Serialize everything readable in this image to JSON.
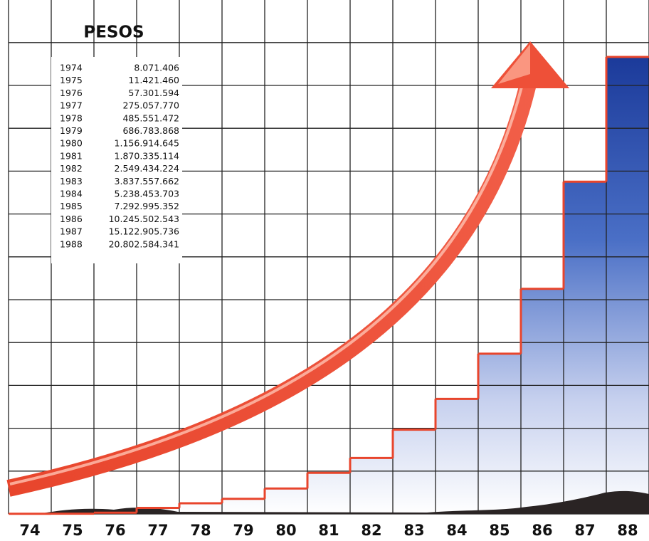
{
  "chart_data": {
    "type": "step",
    "title": "PESOS",
    "categories": [
      "74",
      "75",
      "76",
      "77",
      "78",
      "79",
      "80",
      "81",
      "82",
      "83",
      "84",
      "85",
      "86",
      "87",
      "88"
    ],
    "table_years": [
      "1974",
      "1975",
      "1976",
      "1977",
      "1978",
      "1979",
      "1980",
      "1981",
      "1982",
      "1983",
      "1984",
      "1985",
      "1986",
      "1987",
      "1988"
    ],
    "values": [
      8071406,
      11421460,
      57301594,
      275057770,
      485551472,
      686783868,
      1156914645,
      1870335114,
      2549434224,
      3837557662,
      5238453703,
      7292995352,
      10245502543,
      15122905736,
      20802584341
    ],
    "value_labels": [
      "8.071.406",
      "11.421.460",
      "57.301.594",
      "275.057.770",
      "485.551.472",
      "686.783.868",
      "1.156.914.645",
      "1.870.335.114",
      "2.549.434.224",
      "3.837.557.662",
      "5.238.453.703",
      "7.292.995.352",
      "10.245.502.543",
      "15.122.905.736",
      "20.802.584.341"
    ],
    "color": "#e8452c"
  }
}
